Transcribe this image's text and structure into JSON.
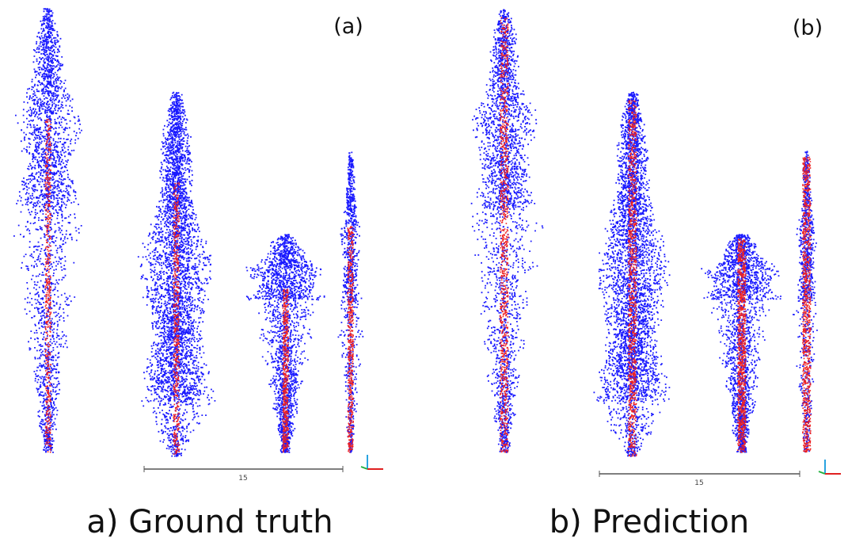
{
  "panels": [
    {
      "tag": "(a)",
      "scale_label": "15",
      "caption": "a) Ground truth"
    },
    {
      "tag": "(b)",
      "scale_label": "15",
      "caption": "b) Prediction"
    }
  ]
}
